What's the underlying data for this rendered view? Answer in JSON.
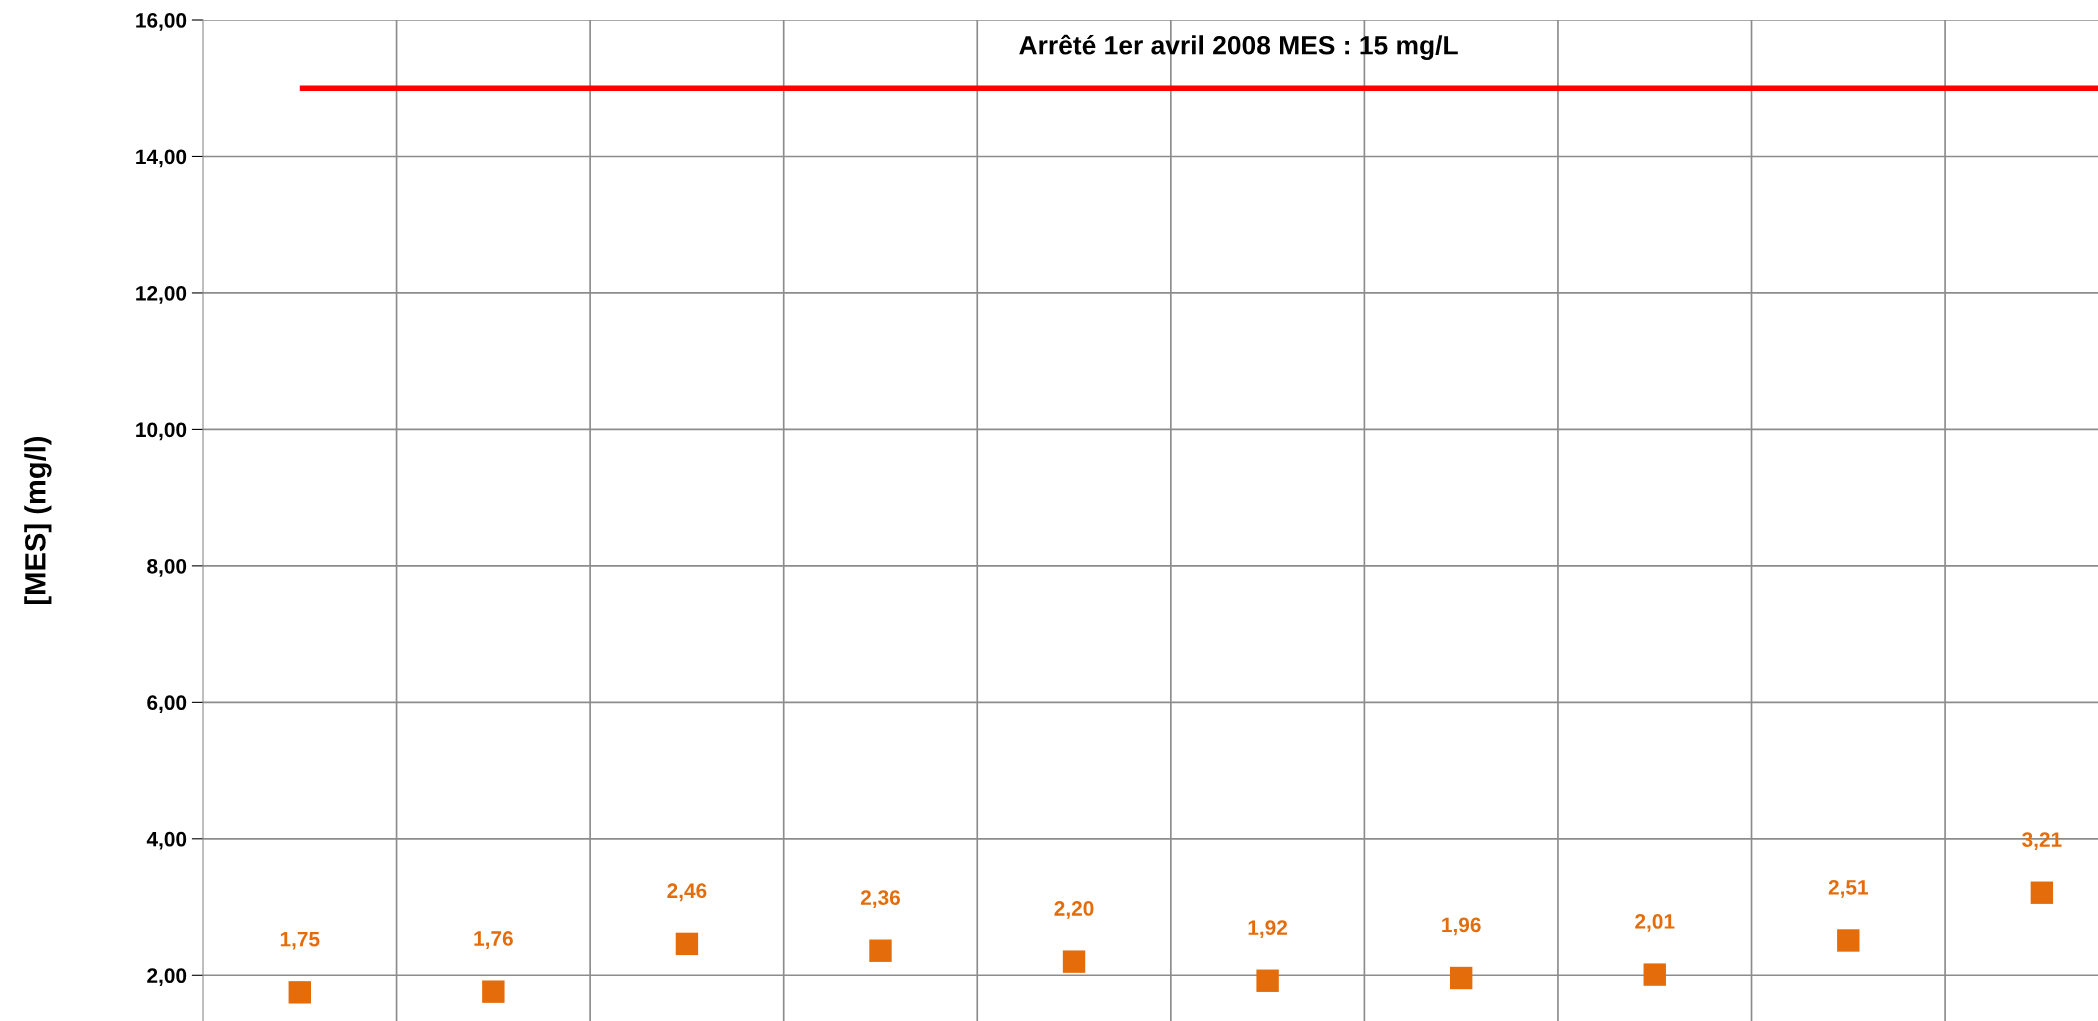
{
  "chart_data": {
    "type": "scatter",
    "ylabel": "[MES] (mg/l)",
    "categories": [
      null,
      null,
      null,
      null,
      null,
      null,
      null,
      null,
      null,
      null
    ],
    "values": [
      1.75,
      1.76,
      2.46,
      2.36,
      2.2,
      1.92,
      1.96,
      2.01,
      2.51,
      3.21
    ],
    "value_labels": [
      "1,75",
      "1,76",
      "2,46",
      "2,36",
      "2,20",
      "1,92",
      "1,96",
      "2,01",
      "2,51",
      "3,21"
    ],
    "color": "#e46c0a",
    "marker": "square",
    "ylim": [
      1.33,
      16
    ],
    "yticks": [
      {
        "value": 2,
        "label": "2,00"
      },
      {
        "value": 4,
        "label": "4,00"
      },
      {
        "value": 6,
        "label": "6,00"
      },
      {
        "value": 8,
        "label": "8,00"
      },
      {
        "value": 10,
        "label": "10,00"
      },
      {
        "value": 12,
        "label": "12,00"
      },
      {
        "value": 14,
        "label": "14,00"
      },
      {
        "value": 16,
        "label": "16,00"
      }
    ],
    "ref_lines": [
      {
        "axis": "y",
        "value": 15,
        "label": "Arrêté 1er avril 2008 MES : 15 mg/L",
        "color": "#ff0000",
        "line_style": "solid"
      }
    ],
    "grid": true,
    "tick_labels": "y"
  }
}
